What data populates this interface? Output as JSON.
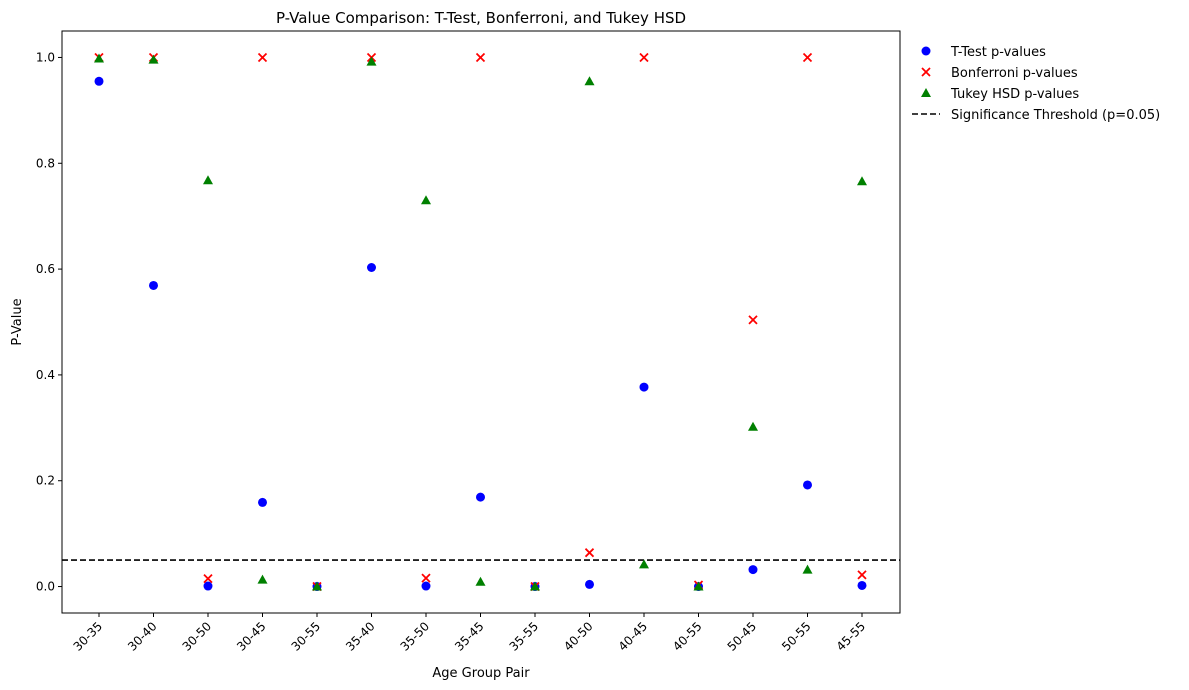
{
  "chart_data": {
    "type": "scatter",
    "title": "P-Value Comparison: T-Test, Bonferroni, and Tukey HSD",
    "xlabel": "Age Group Pair",
    "ylabel": "P-Value",
    "ylim": [
      -0.05,
      1.05
    ],
    "yticks": [
      0.0,
      0.2,
      0.4,
      0.6,
      0.8,
      1.0
    ],
    "ytick_labels": [
      "0.0",
      "0.2",
      "0.4",
      "0.6",
      "0.8",
      "1.0"
    ],
    "categories": [
      "30-35",
      "30-40",
      "30-50",
      "30-45",
      "30-55",
      "35-40",
      "35-50",
      "35-45",
      "35-55",
      "40-50",
      "40-45",
      "40-55",
      "50-45",
      "50-55",
      "45-55"
    ],
    "series": [
      {
        "name": "T-Test p-values",
        "marker": "circle",
        "color": "#0000ff",
        "values": [
          0.955,
          0.569,
          0.001,
          0.159,
          0.0,
          0.603,
          0.001,
          0.169,
          0.0,
          0.004,
          0.377,
          0.0,
          0.032,
          0.192,
          0.002
        ]
      },
      {
        "name": "Bonferroni p-values",
        "marker": "x",
        "color": "#ff0000",
        "values": [
          1.0,
          1.0,
          0.015,
          1.0,
          0.0,
          1.0,
          0.016,
          1.0,
          0.0,
          0.064,
          1.0,
          0.003,
          0.504,
          1.0,
          0.022
        ]
      },
      {
        "name": "Tukey HSD p-values",
        "marker": "triangle",
        "color": "#008000",
        "values": [
          0.998,
          0.996,
          0.768,
          0.013,
          0.0,
          0.992,
          0.73,
          0.009,
          0.0,
          0.955,
          0.042,
          0.0,
          0.302,
          0.032,
          0.766
        ]
      }
    ],
    "threshold": {
      "name": "Significance Threshold (p=0.05)",
      "value": 0.05,
      "color": "#000000",
      "style": "dashed"
    },
    "legend_position": "outside-top-right",
    "grid": false
  }
}
